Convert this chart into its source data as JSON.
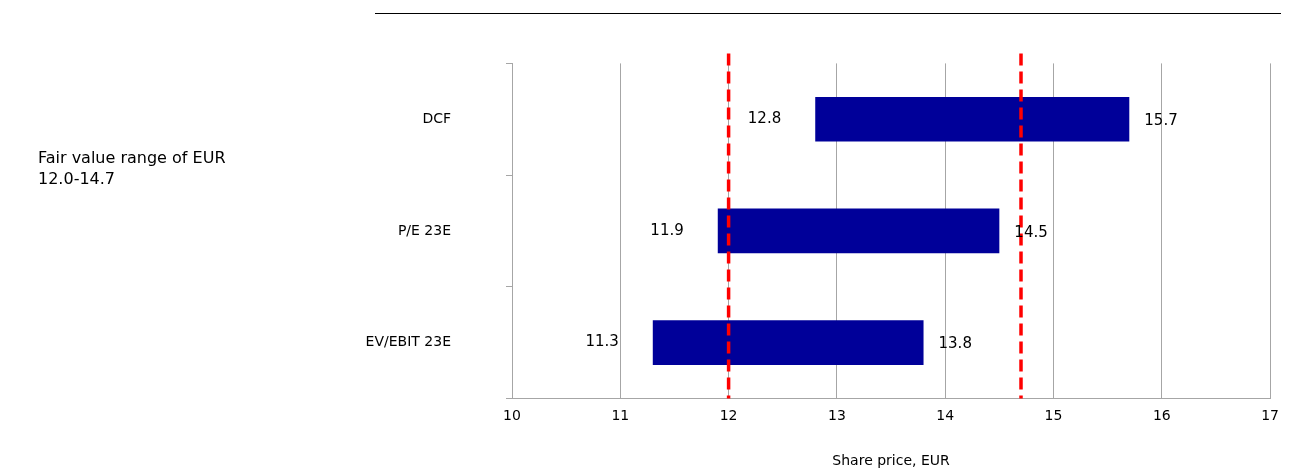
{
  "chart_data": {
    "type": "bar",
    "orientation": "horizontal",
    "xlabel": "Share price, EUR",
    "categories": [
      "DCF",
      "P/E 23E",
      "EV/EBIT 23E"
    ],
    "base": [
      12.8,
      11.9,
      11.3
    ],
    "values": [
      2.9,
      2.6,
      2.5
    ],
    "color": "#000099",
    "xlim": [
      10,
      17
    ],
    "xticks": [
      10,
      11,
      12,
      13,
      14,
      15,
      16,
      17
    ],
    "grid": "x",
    "legend": false,
    "ref_lines": [
      {
        "axis": "x",
        "value": 12,
        "color": "#ff0000",
        "line_style": "dashed"
      },
      {
        "axis": "x",
        "value": 14.7,
        "color": "#ff0000",
        "line_style": "dashed"
      }
    ],
    "annotations": [
      "Fair value range of EUR 12.0-14.7",
      {
        "text": "12.8",
        "x": 12.8,
        "y": "DCF"
      },
      {
        "text": "15.7",
        "x": 15.7,
        "y": "DCF"
      },
      {
        "text": "11.9",
        "x": 11.9,
        "y": "P/E 23E"
      },
      {
        "text": "14.5",
        "x": 14.5,
        "y": "P/E 23E"
      },
      {
        "text": "11.3",
        "x": 11.3,
        "y": "EV/EBIT 23E"
      },
      {
        "text": "13.8",
        "x": 13.8,
        "y": "EV/EBIT 23E"
      }
    ]
  }
}
